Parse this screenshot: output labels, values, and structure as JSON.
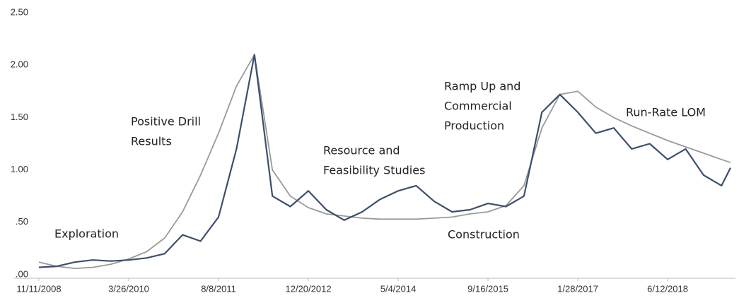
{
  "chart_data": {
    "type": "line",
    "xlim": [
      "11/11/2008",
      "5/28/2019"
    ],
    "xticks": [
      "11/11/2008",
      "3/26/2010",
      "8/8/2011",
      "12/20/2012",
      "5/4/2014",
      "9/16/2015",
      "1/28/2017",
      "6/12/2018"
    ],
    "ylim": [
      0,
      2.5
    ],
    "yticks": [
      {
        "value": 0,
        "label": ".00"
      },
      {
        "value": 0.5,
        "label": ".50"
      },
      {
        "value": 1,
        "label": "1.00"
      },
      {
        "value": 1.5,
        "label": "1.50"
      },
      {
        "value": 2,
        "label": "2.00"
      },
      {
        "value": 2.5,
        "label": "2.50"
      }
    ],
    "grid": false,
    "annotations": [
      [
        "Exploration"
      ],
      [
        "Positive Drill",
        "Results"
      ],
      [
        "Resource and",
        "Feasibility Studies"
      ],
      [
        "Construction"
      ],
      [
        "Ramp Up and",
        "Commercial",
        "Production"
      ],
      [
        "Run-Rate LOM"
      ]
    ],
    "series": [
      {
        "color": "#3d4f6e",
        "x": [
          "11/11/2008",
          "2/19/2009",
          "5/30/2009",
          "9/7/2009",
          "12/16/2009",
          "3/26/2010",
          "7/4/2010",
          "10/12/2010",
          "1/20/2011",
          "4/30/2011",
          "8/8/2011",
          "11/16/2011",
          "2/24/2012",
          "6/3/2012",
          "9/11/2012",
          "12/20/2012",
          "3/30/2013",
          "7/8/2013",
          "10/16/2013",
          "1/24/2014",
          "5/4/2014",
          "8/12/2014",
          "11/20/2014",
          "2/28/2015",
          "6/8/2015",
          "9/16/2015",
          "12/25/2015",
          "4/3/2016",
          "7/12/2016",
          "10/20/2016",
          "1/28/2017",
          "5/8/2017",
          "8/16/2017",
          "11/24/2017",
          "3/4/2018",
          "6/12/2018",
          "9/20/2018",
          "12/29/2018",
          "4/8/2019",
          "5/28/2019"
        ],
        "values": [
          0.07,
          0.08,
          0.12,
          0.14,
          0.13,
          0.14,
          0.16,
          0.2,
          0.38,
          0.32,
          0.55,
          1.2,
          2.1,
          0.75,
          0.65,
          0.8,
          0.62,
          0.52,
          0.6,
          0.72,
          0.8,
          0.85,
          0.7,
          0.6,
          0.62,
          0.68,
          0.65,
          0.75,
          1.55,
          1.72,
          1.55,
          1.35,
          1.4,
          1.2,
          1.25,
          1.1,
          1.2,
          0.95,
          0.85,
          1.02
        ]
      },
      {
        "color": "#9a9a9a",
        "x": [
          "11/11/2008",
          "2/19/2009",
          "5/30/2009",
          "9/7/2009",
          "12/16/2009",
          "3/26/2010",
          "7/4/2010",
          "10/12/2010",
          "1/20/2011",
          "4/30/2011",
          "8/8/2011",
          "11/16/2011",
          "2/24/2012",
          "6/3/2012",
          "9/11/2012",
          "12/20/2012",
          "3/30/2013",
          "7/8/2013",
          "10/16/2013",
          "1/24/2014",
          "5/4/2014",
          "8/12/2014",
          "11/20/2014",
          "2/28/2015",
          "6/8/2015",
          "9/16/2015",
          "12/25/2015",
          "4/3/2016",
          "7/12/2016",
          "10/20/2016",
          "1/28/2017",
          "5/8/2017",
          "8/16/2017",
          "11/24/2017",
          "3/4/2018",
          "6/12/2018",
          "9/20/2018",
          "12/29/2018",
          "4/8/2019",
          "5/28/2019"
        ],
        "values": [
          0.12,
          0.08,
          0.06,
          0.07,
          0.1,
          0.15,
          0.22,
          0.35,
          0.6,
          0.95,
          1.35,
          1.8,
          2.1,
          1.0,
          0.75,
          0.64,
          0.58,
          0.56,
          0.54,
          0.53,
          0.53,
          0.53,
          0.54,
          0.55,
          0.58,
          0.6,
          0.66,
          0.85,
          1.4,
          1.72,
          1.75,
          1.6,
          1.5,
          1.42,
          1.35,
          1.28,
          1.22,
          1.16,
          1.1,
          1.07
        ]
      }
    ]
  }
}
